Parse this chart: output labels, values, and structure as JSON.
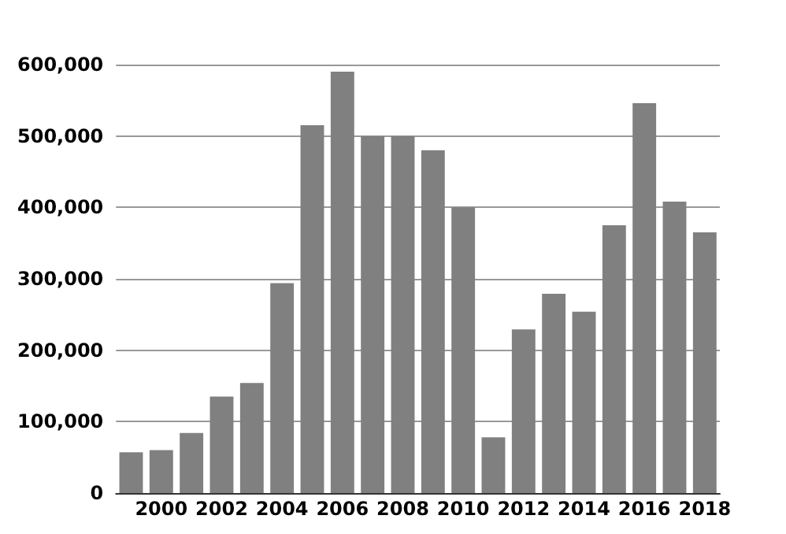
{
  "chart_data": {
    "type": "bar",
    "categories": [
      null,
      "2000",
      null,
      "2002",
      null,
      "2004",
      null,
      "2006",
      null,
      "2008",
      null,
      "2010",
      null,
      "2012",
      null,
      "2014",
      null,
      "2016",
      null,
      "2018"
    ],
    "values": [
      57000,
      60000,
      84000,
      135000,
      154000,
      294000,
      515000,
      590000,
      500000,
      500000,
      480000,
      400000,
      78000,
      229000,
      279000,
      254000,
      375000,
      546000,
      408000,
      365000
    ],
    "color": "#808080",
    "ylim": [
      0,
      600000
    ],
    "yticks": [
      0,
      {
        "value": 100000,
        "label": "100,000"
      },
      {
        "value": 200000,
        "label": "200,000"
      },
      {
        "value": 300000,
        "label": "300,000"
      },
      {
        "value": 400000,
        "label": "400,000"
      },
      {
        "value": 500000,
        "label": "500,000"
      },
      {
        "value": 600000,
        "label": "600,000"
      }
    ],
    "grid": "y"
  }
}
